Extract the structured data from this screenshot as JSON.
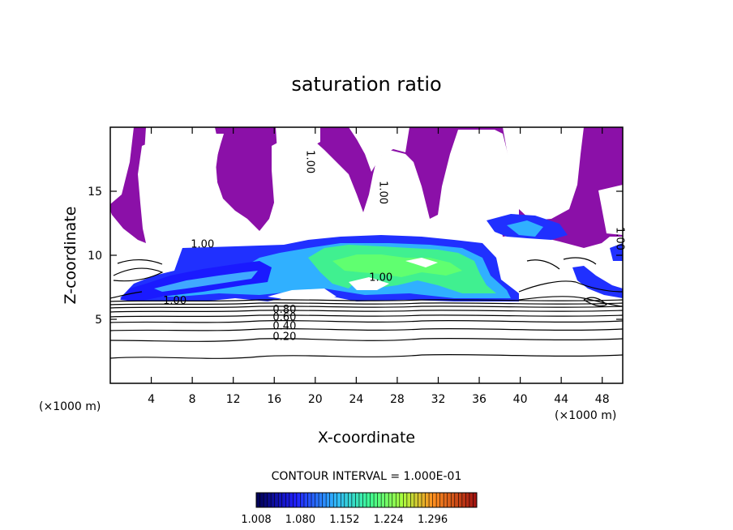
{
  "chart_data": {
    "type": "contour",
    "title": "saturation ratio",
    "xlabel": "X-coordinate",
    "ylabel": "Z-coordinate",
    "x_unit": "(×1000 m)",
    "z_unit": "(×1000 m)",
    "xlim": [
      0,
      50
    ],
    "ylim": [
      0,
      20
    ],
    "xticks": [
      4,
      8,
      12,
      16,
      20,
      24,
      28,
      32,
      36,
      40,
      44,
      48
    ],
    "yticks": [
      5,
      10,
      15
    ],
    "contour_interval_text": "CONTOUR INTERVAL = 1.000E-01",
    "contour_labels": [
      {
        "text": "1.00",
        "x": 9,
        "z": 10.6
      },
      {
        "text": "1.00",
        "x": 6.3,
        "z": 6.2
      },
      {
        "text": "1.00",
        "x": 26.4,
        "z": 8.0
      },
      {
        "text": "1.00",
        "x": 19.2,
        "z": 17.3,
        "rotated": true
      },
      {
        "text": "1.00",
        "x": 26.3,
        "z": 14.9,
        "rotated": true
      },
      {
        "text": "1.00",
        "x": 49.4,
        "z": 11.3,
        "rotated": true
      },
      {
        "text": "0.80",
        "x": 17.0,
        "z": 5.5
      },
      {
        "text": "0.60",
        "x": 17.0,
        "z": 4.9
      },
      {
        "text": "0.40",
        "x": 17.0,
        "z": 4.2
      },
      {
        "text": "0.20",
        "x": 17.0,
        "z": 3.4
      }
    ],
    "colorbar": {
      "min": 1.008,
      "max": 1.368,
      "labels": [
        "1.008",
        "1.080",
        "1.152",
        "1.224",
        "1.296"
      ],
      "colors": [
        "#000050",
        "#1a1aff",
        "#2fb0ff",
        "#40ff90",
        "#a0ff40",
        "#ff9020",
        "#a01010"
      ]
    },
    "fill_color_near_one": "#8b10a8"
  }
}
